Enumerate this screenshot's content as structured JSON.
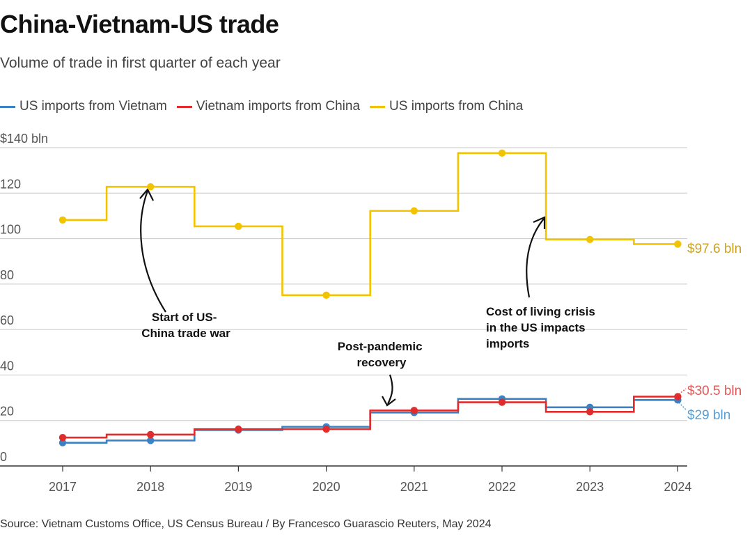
{
  "title": "China-Vietnam-US trade",
  "subtitle": "Volume of trade in first quarter of each year",
  "source": "Source: Vietnam Customs Office, US Census Bureau / By Francesco Guarascio Reuters, May 2024",
  "chart_data": {
    "type": "line",
    "step": true,
    "categories": [
      "2017",
      "2018",
      "2019",
      "2020",
      "2021",
      "2022",
      "2023",
      "2024"
    ],
    "ylim": [
      0,
      140
    ],
    "yticks": [
      {
        "value": 0,
        "label": "0"
      },
      {
        "value": 20,
        "label": "20"
      },
      {
        "value": 40,
        "label": "40"
      },
      {
        "value": 60,
        "label": "60"
      },
      {
        "value": 80,
        "label": "80"
      },
      {
        "value": 100,
        "label": "100"
      },
      {
        "value": 120,
        "label": "120"
      },
      {
        "value": 140,
        "label": "$140 bln"
      }
    ],
    "series": [
      {
        "key": "vn",
        "name": "US imports from Vietnam",
        "color": "#3b82c4",
        "values": [
          10.2,
          11.2,
          15.8,
          17.2,
          23.5,
          29.5,
          25.8,
          29.0
        ],
        "end_label": "$29 bln"
      },
      {
        "key": "cn_vn",
        "name": "Vietnam imports from China",
        "color": "#e02c2c",
        "values": [
          12.5,
          13.8,
          16.2,
          16.2,
          24.4,
          28.0,
          23.8,
          30.5
        ],
        "end_label": "$30.5 bln"
      },
      {
        "key": "cn",
        "name": "US imports from China",
        "color": "#f2c300",
        "values": [
          108.2,
          122.8,
          105.4,
          75.1,
          112.2,
          137.6,
          99.6,
          97.6
        ],
        "end_label": "$97.6 bln"
      }
    ],
    "annotations": [
      {
        "lines": [
          "Start of US-",
          "China trade war"
        ]
      },
      {
        "lines": [
          "Post-pandemic",
          "recovery"
        ]
      },
      {
        "lines": [
          "Cost of living crisis",
          "in the US impacts",
          "imports"
        ]
      }
    ],
    "end_label_colors": {
      "vn": "#5b9dd0",
      "cn_vn": "#e05a5a",
      "cn": "#c9a227"
    }
  }
}
